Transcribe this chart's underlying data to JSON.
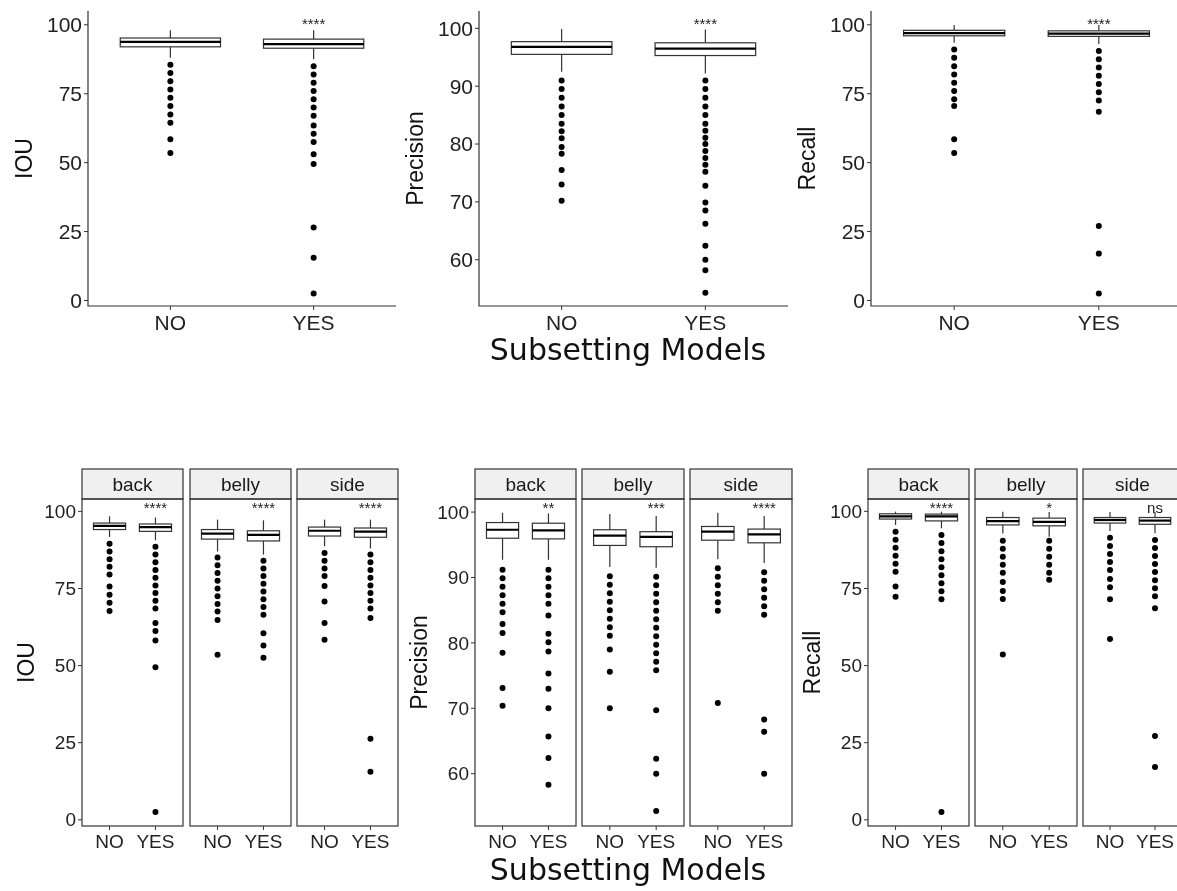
{
  "chart_data": [
    {
      "type": "box",
      "ylabel": "IOU",
      "categories": [
        "NO",
        "YES"
      ],
      "ylim": [
        -2,
        105
      ],
      "yticks": [
        0,
        25,
        50,
        75,
        100
      ],
      "annotations": [
        "****"
      ],
      "boxes": [
        {
          "low": 88,
          "q1": 92,
          "median": 93.8,
          "q3": 95.2,
          "high": 98,
          "outliers": [
            85.5,
            82.5,
            79.5,
            76.5,
            73.5,
            70.5,
            67.5,
            64.5,
            58.5,
            53.5
          ]
        },
        {
          "low": 87.5,
          "q1": 91.5,
          "median": 93,
          "q3": 94.8,
          "high": 98,
          "outliers": [
            85,
            82,
            79,
            76,
            73,
            70,
            67,
            63.5,
            60.5,
            57.5,
            53,
            49.5,
            26.5,
            15.5,
            2.5
          ]
        }
      ]
    },
    {
      "type": "box",
      "ylabel": "Precision",
      "xlabel": "Subsetting Models",
      "categories": [
        "NO",
        "YES"
      ],
      "ylim": [
        52,
        103
      ],
      "yticks": [
        60,
        70,
        80,
        90,
        100
      ],
      "annotations": [
        "****"
      ],
      "boxes": [
        {
          "low": 92.5,
          "q1": 95.5,
          "median": 96.8,
          "q3": 97.7,
          "high": 99.9,
          "outliers": [
            91,
            89.5,
            88,
            86.5,
            85,
            83.5,
            82.2,
            81,
            79.5,
            78.3,
            75.5,
            73,
            70.2
          ]
        },
        {
          "low": 92.2,
          "q1": 95.3,
          "median": 96.5,
          "q3": 97.5,
          "high": 99.8,
          "outliers": [
            91,
            89.5,
            88,
            86.5,
            85,
            83.5,
            82.3,
            81.1,
            80,
            78.8,
            77.6,
            76.4,
            75.2,
            72.8,
            69.9,
            68.5,
            66.2,
            62.4,
            60,
            58.2,
            54.3
          ]
        }
      ]
    },
    {
      "type": "box",
      "ylabel": "Recall",
      "categories": [
        "NO",
        "YES"
      ],
      "ylim": [
        -2,
        105
      ],
      "yticks": [
        0,
        25,
        50,
        75,
        100
      ],
      "annotations": [
        "****"
      ],
      "boxes": [
        {
          "low": 93.5,
          "q1": 96,
          "median": 97,
          "q3": 98,
          "high": 99.9,
          "outliers": [
            91,
            88,
            85,
            82,
            79,
            76,
            73,
            70.5,
            58.5,
            53.5
          ]
        },
        {
          "low": 93,
          "q1": 95.8,
          "median": 96.8,
          "q3": 97.8,
          "high": 99.9,
          "outliers": [
            90.5,
            87.5,
            84.5,
            81.5,
            78.5,
            75.5,
            72.5,
            68.5,
            27,
            17,
            2.5
          ]
        }
      ]
    },
    {
      "type": "box",
      "title": "back",
      "ylabel": "IOU",
      "categories": [
        "NO",
        "YES"
      ],
      "ylim": [
        -2,
        104
      ],
      "yticks": [
        0,
        25,
        50,
        75,
        100
      ],
      "annotations": [
        "****"
      ],
      "boxes": [
        {
          "low": 91.7,
          "q1": 94.1,
          "median": 95.3,
          "q3": 96.2,
          "high": 98.4,
          "outliers": [
            89.5,
            87,
            84.5,
            82,
            79.5,
            75.6,
            73,
            70.4,
            67.7
          ]
        },
        {
          "low": 90.6,
          "q1": 93.5,
          "median": 94.9,
          "q3": 95.9,
          "high": 98,
          "outliers": [
            88.5,
            86,
            83.5,
            81,
            78.5,
            76,
            73.5,
            71,
            68.5,
            63.8,
            61.2,
            58.1,
            49.5,
            2.5
          ]
        }
      ]
    },
    {
      "type": "box",
      "title": "belly",
      "tick_labels": "x",
      "categories": [
        "NO",
        "YES"
      ],
      "ylim": [
        -2,
        104
      ],
      "yticks": [
        0,
        25,
        50,
        75,
        100
      ],
      "annotations": [
        "****"
      ],
      "boxes": [
        {
          "low": 87,
          "q1": 91,
          "median": 92.8,
          "q3": 94.1,
          "high": 97.3,
          "outliers": [
            85,
            82.5,
            80,
            77.5,
            75,
            72.5,
            70,
            67.5,
            64.8,
            53.5
          ]
        },
        {
          "low": 86,
          "q1": 90.4,
          "median": 92.4,
          "q3": 93.7,
          "high": 97.1,
          "outliers": [
            84,
            81.5,
            79,
            76.5,
            74,
            71.5,
            69,
            66.5,
            60.5,
            56.5,
            52.5
          ]
        }
      ]
    },
    {
      "type": "box",
      "title": "side",
      "tick_labels": "x",
      "categories": [
        "NO",
        "YES"
      ],
      "ylim": [
        -2,
        104
      ],
      "yticks": [
        0,
        25,
        50,
        75,
        100
      ],
      "annotations": [
        "****"
      ],
      "boxes": [
        {
          "low": 88.7,
          "q1": 92,
          "median": 93.7,
          "q3": 94.9,
          "high": 97.3,
          "outliers": [
            86.5,
            84,
            81.5,
            79,
            75.8,
            70.8,
            63.8,
            58.4
          ]
        },
        {
          "low": 88,
          "q1": 91.6,
          "median": 93.4,
          "q3": 94.6,
          "high": 97.3,
          "outliers": [
            86,
            83.5,
            81,
            78.5,
            76,
            73.5,
            71,
            68.5,
            65.4,
            26.3,
            15.6
          ]
        }
      ]
    },
    {
      "type": "box",
      "title": "back",
      "ylabel": "Precision",
      "categories": [
        "NO",
        "YES"
      ],
      "ylim": [
        52,
        102
      ],
      "yticks": [
        60,
        70,
        80,
        90,
        100
      ],
      "annotations": [
        "**"
      ],
      "boxes": [
        {
          "low": 92.7,
          "q1": 96,
          "median": 97.3,
          "q3": 98.4,
          "high": 99.9,
          "outliers": [
            91.2,
            89.9,
            88.6,
            87.3,
            86,
            84.7,
            82.9,
            81.5,
            78.5,
            73.1,
            70.4
          ]
        },
        {
          "low": 92.7,
          "q1": 95.9,
          "median": 97.2,
          "q3": 98.3,
          "high": 99.8,
          "outliers": [
            91.2,
            89.9,
            88.6,
            87.3,
            86,
            84.2,
            81.4,
            80.1,
            78.7,
            75.3,
            73,
            70,
            65.7,
            62.4,
            58.3
          ]
        }
      ]
    },
    {
      "type": "box",
      "title": "belly",
      "xlabel": "Subsetting Models",
      "tick_labels": "x",
      "categories": [
        "NO",
        "YES"
      ],
      "ylim": [
        52,
        102
      ],
      "yticks": [
        60,
        70,
        80,
        90,
        100
      ],
      "annotations": [
        "***"
      ],
      "boxes": [
        {
          "low": 91.6,
          "q1": 94.9,
          "median": 96.4,
          "q3": 97.3,
          "high": 99.7,
          "outliers": [
            90.2,
            88.9,
            87.6,
            86.3,
            85,
            83.7,
            82.4,
            81.1,
            79,
            75.6,
            70
          ]
        },
        {
          "low": 91.5,
          "q1": 94.7,
          "median": 96.2,
          "q3": 97,
          "high": 99.4,
          "outliers": [
            90.1,
            88.8,
            87.5,
            86.2,
            84.9,
            83.6,
            82.3,
            81,
            79.7,
            78.4,
            77.1,
            75.8,
            69.7,
            62.3,
            60,
            54.3
          ]
        }
      ]
    },
    {
      "type": "box",
      "title": "side",
      "tick_labels": "x",
      "categories": [
        "NO",
        "YES"
      ],
      "ylim": [
        52,
        102
      ],
      "yticks": [
        60,
        70,
        80,
        90,
        100
      ],
      "annotations": [
        "****"
      ],
      "boxes": [
        {
          "low": 92.8,
          "q1": 95.7,
          "median": 97,
          "q3": 97.8,
          "high": 99.9,
          "outliers": [
            91.4,
            90.1,
            88.8,
            87.5,
            86.2,
            84.9,
            70.8
          ]
        },
        {
          "low": 92.2,
          "q1": 95.3,
          "median": 96.6,
          "q3": 97.4,
          "high": 99.4,
          "outliers": [
            90.8,
            89.5,
            88.2,
            86.9,
            85.6,
            84.3,
            68.3,
            66.4,
            60
          ]
        }
      ]
    },
    {
      "type": "box",
      "title": "back",
      "ylabel": "Recall",
      "categories": [
        "NO",
        "YES"
      ],
      "ylim": [
        -2,
        104
      ],
      "yticks": [
        0,
        25,
        50,
        75,
        100
      ],
      "annotations": [
        "****"
      ],
      "boxes": [
        {
          "low": 95.6,
          "q1": 97.5,
          "median": 98.4,
          "q3": 99.2,
          "high": 99.9,
          "outliers": [
            93.4,
            90.8,
            88.2,
            85.6,
            83,
            80.4,
            75.6,
            72.3
          ]
        },
        {
          "low": 94.5,
          "q1": 96.9,
          "median": 98.4,
          "q3": 99.1,
          "high": 99.9,
          "outliers": [
            92.3,
            89.7,
            87.1,
            84.5,
            81.9,
            79.3,
            76.7,
            74.1,
            71.5,
            2.5
          ]
        }
      ]
    },
    {
      "type": "box",
      "title": "belly",
      "tick_labels": "x",
      "categories": [
        "NO",
        "YES"
      ],
      "ylim": [
        -2,
        104
      ],
      "yticks": [
        0,
        25,
        50,
        75,
        100
      ],
      "annotations": [
        "*"
      ],
      "boxes": [
        {
          "low": 92.8,
          "q1": 95.6,
          "median": 96.8,
          "q3": 98,
          "high": 99.9,
          "outliers": [
            90.5,
            87.9,
            85.3,
            82.7,
            80.1,
            77.1,
            74.2,
            71.6,
            53.6
          ]
        },
        {
          "low": 91.8,
          "q1": 95.3,
          "median": 96.6,
          "q3": 97.8,
          "high": 99.8,
          "outliers": [
            90.5,
            87.9,
            85.3,
            82.7,
            80.1,
            77.8
          ]
        }
      ]
    },
    {
      "type": "box",
      "title": "side",
      "tick_labels": "x",
      "categories": [
        "NO",
        "YES"
      ],
      "ylim": [
        -2,
        104
      ],
      "yticks": [
        0,
        25,
        50,
        75,
        100
      ],
      "annotations": [
        "ns"
      ],
      "boxes": [
        {
          "low": 93.6,
          "q1": 96.2,
          "median": 97.2,
          "q3": 98,
          "high": 99.8,
          "outliers": [
            91.4,
            88.8,
            86.2,
            83.6,
            81,
            78.1,
            75.4,
            71.5,
            58.6
          ]
        },
        {
          "low": 92.9,
          "q1": 95.8,
          "median": 97,
          "q3": 98,
          "high": 99.8,
          "outliers": [
            90.7,
            88.1,
            85.5,
            82.9,
            80.3,
            77.7,
            75.1,
            72.5,
            68.6,
            27.2,
            17.1
          ]
        }
      ]
    }
  ]
}
